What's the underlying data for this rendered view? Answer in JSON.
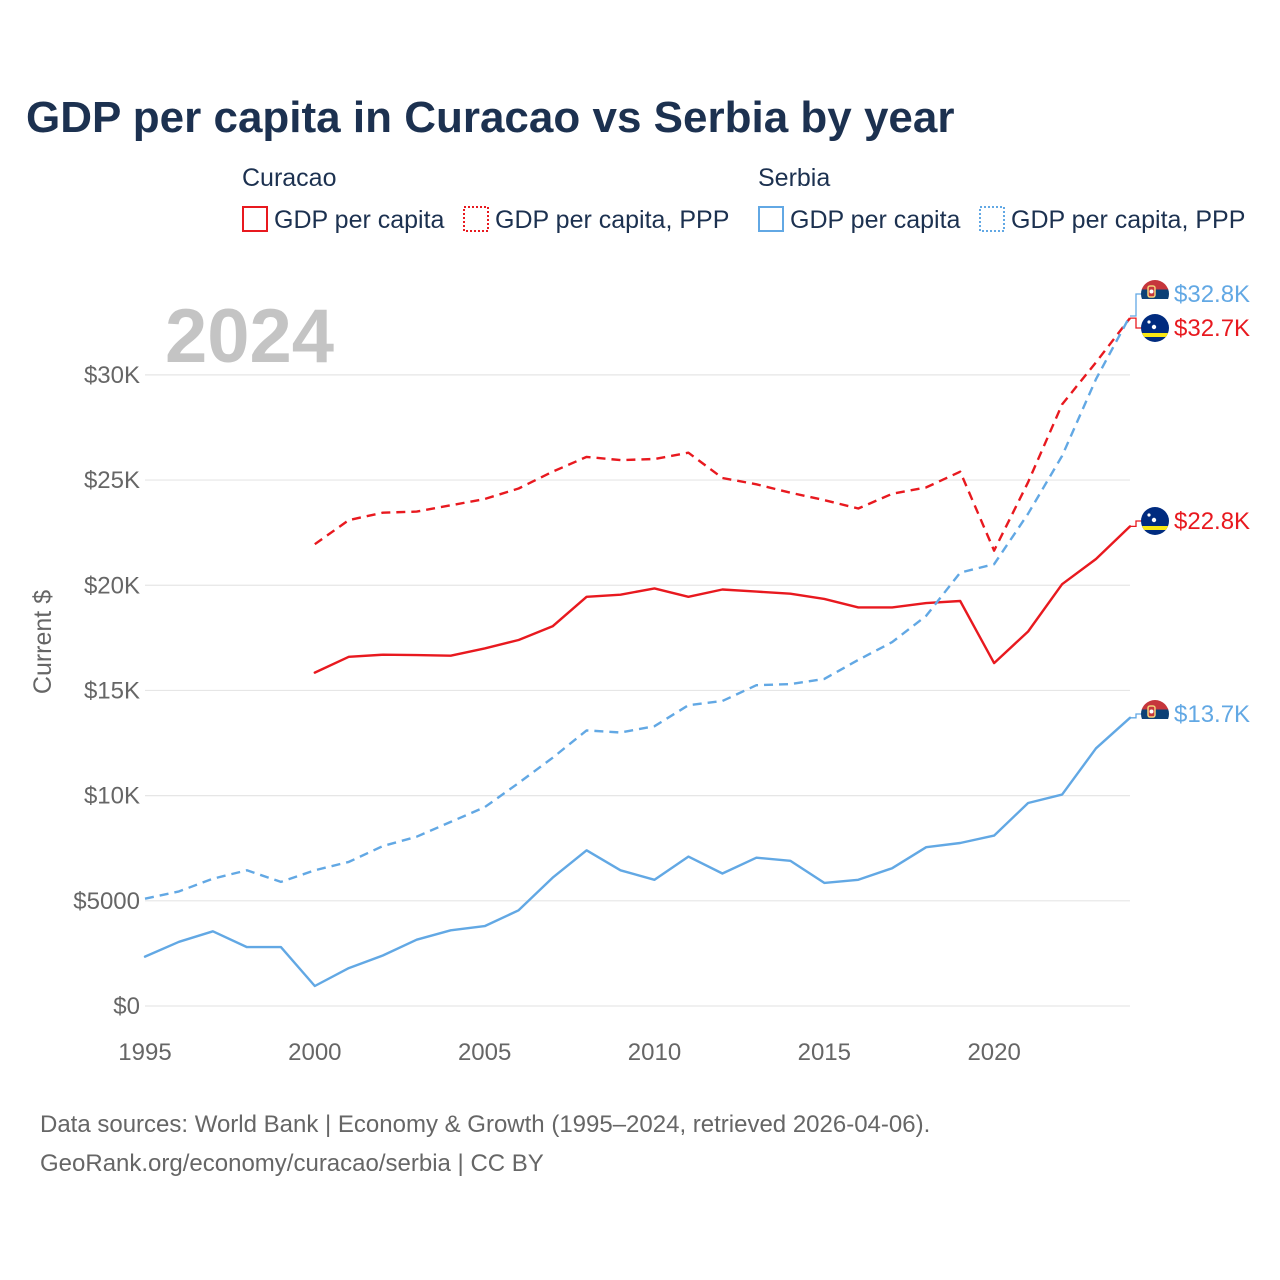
{
  "colors": {
    "curacao": "#e8191f",
    "serbia": "#62a8e4",
    "grid": "#e6e6e6",
    "text_dark": "#1c3150",
    "text_muted": "#666666",
    "year_watermark": "#c4c4c4"
  },
  "legend": {
    "groups": [
      {
        "name": "Curacao",
        "items": [
          {
            "label": "GDP per capita",
            "style": "solid",
            "color": "#e8191f"
          },
          {
            "label": "GDP per capita, PPP",
            "style": "dotted",
            "color": "#e8191f"
          }
        ]
      },
      {
        "name": "Serbia",
        "items": [
          {
            "label": "GDP per capita",
            "style": "solid",
            "color": "#62a8e4"
          },
          {
            "label": "GDP per capita, PPP",
            "style": "dotted",
            "color": "#62a8e4"
          }
        ]
      }
    ]
  },
  "year_watermark": "2024",
  "end_labels": [
    {
      "text": "$32.8K",
      "series": "Serbia GDP per capita, PPP",
      "color": "#62a8e4",
      "flag": "serbia-flag-icon"
    },
    {
      "text": "$32.7K",
      "series": "Curacao GDP per capita, PPP",
      "color": "#e8191f",
      "flag": "curacao-flag-icon"
    },
    {
      "text": "$22.8K",
      "series": "Curacao GDP per capita",
      "color": "#e8191f",
      "flag": "curacao-flag-icon"
    },
    {
      "text": "$13.7K",
      "series": "Serbia GDP per capita",
      "color": "#62a8e4",
      "flag": "serbia-flag-icon"
    }
  ],
  "source_lines": [
    "Data sources: World Bank | Economy & Growth (1995–2024, retrieved 2026-04-06).",
    "GeoRank.org/economy/curacao/serbia | CC BY"
  ],
  "chart_data": {
    "type": "line",
    "title": "GDP per capita in Curacao vs Serbia by year",
    "xlabel": "",
    "ylabel": "Current $",
    "xlim": [
      1995,
      2024
    ],
    "ylim": [
      0,
      32800
    ],
    "x_ticks": [
      1995,
      2000,
      2005,
      2010,
      2015,
      2020
    ],
    "x_tick_labels": [
      "1995",
      "2000",
      "2005",
      "2010",
      "2015",
      "2020"
    ],
    "y_ticks": [
      0,
      5000,
      10000,
      15000,
      20000,
      25000,
      30000
    ],
    "y_tick_labels": [
      "$0",
      "$5000",
      "$10K",
      "$15K",
      "$20K",
      "$25K",
      "$30K"
    ],
    "grid": true,
    "legend_position": "top",
    "series": [
      {
        "name": "Curacao GDP per capita",
        "country": "Curacao",
        "style": "solid",
        "color": "#e8191f",
        "x": [
          2000,
          2001,
          2002,
          2003,
          2004,
          2005,
          2006,
          2007,
          2008,
          2009,
          2010,
          2011,
          2012,
          2013,
          2014,
          2015,
          2016,
          2017,
          2018,
          2019,
          2020,
          2021,
          2022,
          2023,
          2024
        ],
        "values": [
          15850,
          16600,
          16700,
          16680,
          16650,
          17000,
          17400,
          18050,
          19450,
          19550,
          19850,
          19450,
          19800,
          19700,
          19600,
          19350,
          18950,
          18950,
          19150,
          19250,
          16300,
          17800,
          20050,
          21250,
          22800
        ]
      },
      {
        "name": "Curacao GDP per capita, PPP",
        "country": "Curacao",
        "style": "dashed",
        "color": "#e8191f",
        "x": [
          2000,
          2001,
          2002,
          2003,
          2004,
          2005,
          2006,
          2007,
          2008,
          2009,
          2010,
          2011,
          2012,
          2013,
          2014,
          2015,
          2016,
          2017,
          2018,
          2019,
          2020,
          2021,
          2022,
          2023,
          2024
        ],
        "values": [
          21950,
          23100,
          23450,
          23500,
          23800,
          24100,
          24600,
          25400,
          26100,
          25950,
          26000,
          26300,
          25100,
          24800,
          24400,
          24050,
          23650,
          24350,
          24650,
          25400,
          21650,
          24900,
          28600,
          30600,
          32700
        ]
      },
      {
        "name": "Serbia GDP per capita",
        "country": "Serbia",
        "style": "solid",
        "color": "#62a8e4",
        "x": [
          1995,
          1996,
          1997,
          1998,
          1999,
          2000,
          2001,
          2002,
          2003,
          2004,
          2005,
          2006,
          2007,
          2008,
          2009,
          2010,
          2011,
          2012,
          2013,
          2014,
          2015,
          2016,
          2017,
          2018,
          2019,
          2020,
          2021,
          2022,
          2023,
          2024
        ],
        "values": [
          2350,
          3050,
          3550,
          2800,
          2800,
          950,
          1800,
          2400,
          3150,
          3600,
          3800,
          4550,
          6100,
          7400,
          6450,
          6000,
          7100,
          6300,
          7050,
          6900,
          5850,
          6000,
          6550,
          7550,
          7750,
          8100,
          9650,
          10050,
          12250,
          13700
        ]
      },
      {
        "name": "Serbia GDP per capita, PPP",
        "country": "Serbia",
        "style": "dashed",
        "color": "#62a8e4",
        "x": [
          1995,
          1996,
          1997,
          1998,
          1999,
          2000,
          2001,
          2002,
          2003,
          2004,
          2005,
          2006,
          2007,
          2008,
          2009,
          2010,
          2011,
          2012,
          2013,
          2014,
          2015,
          2016,
          2017,
          2018,
          2019,
          2020,
          2021,
          2022,
          2023,
          2024
        ],
        "values": [
          5100,
          5450,
          6050,
          6450,
          5900,
          6450,
          6850,
          7600,
          8050,
          8750,
          9450,
          10600,
          11800,
          13100,
          13000,
          13300,
          14300,
          14500,
          15250,
          15300,
          15550,
          16450,
          17300,
          18550,
          20600,
          21000,
          23400,
          26150,
          29800,
          32800
        ]
      }
    ]
  }
}
